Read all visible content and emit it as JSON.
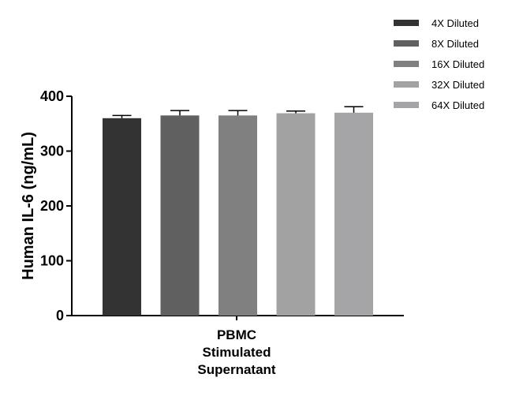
{
  "chart_data": {
    "type": "bar",
    "categories": [
      "PBMC Stimulated Supernatant"
    ],
    "category_label_lines": [
      "PBMC",
      "Stimulated",
      "Supernatant"
    ],
    "ylabel": "Human IL-6 (ng/mL)",
    "xlabel": "",
    "ylim": [
      0,
      400
    ],
    "yticks": [
      0,
      100,
      200,
      300,
      400
    ],
    "error_bars": true,
    "legend_position": "top-right",
    "series": [
      {
        "name": "4X Diluted",
        "values": [
          360
        ],
        "error": [
          5
        ],
        "color": "#333333"
      },
      {
        "name": "8X Diluted",
        "values": [
          365
        ],
        "error": [
          9
        ],
        "color": "#606060"
      },
      {
        "name": "16X Diluted",
        "values": [
          365
        ],
        "error": [
          9
        ],
        "color": "#808080"
      },
      {
        "name": "32X Diluted",
        "values": [
          369
        ],
        "error": [
          4
        ],
        "color": "#a2a2a2"
      },
      {
        "name": "64X Diluted",
        "values": [
          370
        ],
        "error": [
          11
        ],
        "color": "#a5a5a8"
      }
    ]
  }
}
